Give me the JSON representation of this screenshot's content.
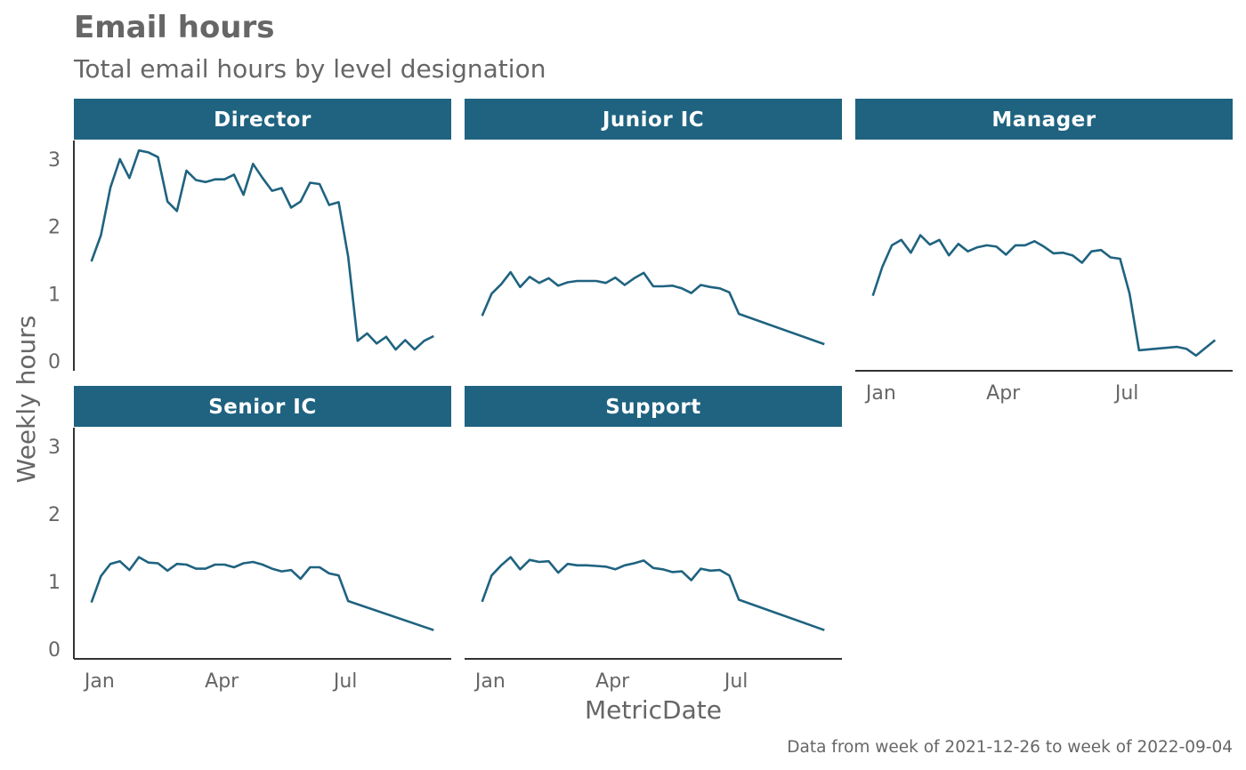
{
  "chart_data": {
    "type": "line",
    "title": "Email hours",
    "subtitle": "Total email hours by level designation",
    "xlabel": "MetricDate",
    "ylabel": "Weekly hours",
    "caption": "Data from week of 2021-12-26 to week of 2022-09-04",
    "x_ticks": [
      "Jan",
      "Apr",
      "Jul"
    ],
    "y_ticks": [
      "0",
      "1",
      "2",
      "3"
    ],
    "ylim": [
      0,
      3.3
    ],
    "line_color": "#1F6380",
    "strip_color": "#1F6380",
    "panels": [
      {
        "name": "Director",
        "x": [
          "2021-12-26",
          "2022-01-02",
          "2022-01-09",
          "2022-01-16",
          "2022-01-23",
          "2022-01-30",
          "2022-02-06",
          "2022-02-13",
          "2022-02-20",
          "2022-02-27",
          "2022-03-06",
          "2022-03-13",
          "2022-03-20",
          "2022-03-27",
          "2022-04-03",
          "2022-04-10",
          "2022-04-17",
          "2022-04-24",
          "2022-05-01",
          "2022-05-08",
          "2022-05-15",
          "2022-05-22",
          "2022-05-29",
          "2022-06-05",
          "2022-06-12",
          "2022-06-19",
          "2022-06-26",
          "2022-07-03",
          "2022-07-10",
          "2022-07-17",
          "2022-07-24",
          "2022-07-31",
          "2022-08-07",
          "2022-08-14",
          "2022-08-21",
          "2022-08-28",
          "2022-09-04"
        ],
        "y": [
          1.48,
          1.87,
          2.58,
          3.0,
          2.72,
          3.13,
          3.1,
          3.03,
          2.37,
          2.23,
          2.83,
          2.69,
          2.66,
          2.7,
          2.7,
          2.77,
          2.47,
          2.93,
          2.72,
          2.53,
          2.57,
          2.28,
          2.37,
          2.65,
          2.63,
          2.32,
          2.36,
          1.55,
          0.3,
          0.41,
          0.26,
          0.36,
          0.17,
          0.31,
          0.17,
          0.3,
          0.37
        ]
      },
      {
        "name": "Junior IC",
        "x": [
          "2021-12-26",
          "2022-01-02",
          "2022-01-09",
          "2022-01-16",
          "2022-01-23",
          "2022-01-30",
          "2022-02-06",
          "2022-02-13",
          "2022-02-20",
          "2022-02-27",
          "2022-03-06",
          "2022-03-13",
          "2022-03-20",
          "2022-03-27",
          "2022-04-03",
          "2022-04-10",
          "2022-04-17",
          "2022-04-24",
          "2022-05-01",
          "2022-05-08",
          "2022-05-15",
          "2022-05-22",
          "2022-05-29",
          "2022-06-05",
          "2022-06-12",
          "2022-06-19",
          "2022-06-26",
          "2022-07-03",
          "2022-09-04"
        ],
        "y": [
          0.67,
          1.0,
          1.14,
          1.32,
          1.1,
          1.25,
          1.16,
          1.23,
          1.12,
          1.17,
          1.19,
          1.19,
          1.19,
          1.16,
          1.24,
          1.13,
          1.23,
          1.31,
          1.11,
          1.11,
          1.12,
          1.08,
          1.01,
          1.13,
          1.1,
          1.08,
          1.02,
          0.7,
          0.25
        ]
      },
      {
        "name": "Manager",
        "x": [
          "2021-12-26",
          "2022-01-02",
          "2022-01-09",
          "2022-01-16",
          "2022-01-23",
          "2022-01-30",
          "2022-02-06",
          "2022-02-13",
          "2022-02-20",
          "2022-02-27",
          "2022-03-06",
          "2022-03-13",
          "2022-03-20",
          "2022-03-27",
          "2022-04-03",
          "2022-04-10",
          "2022-04-17",
          "2022-04-24",
          "2022-05-01",
          "2022-05-08",
          "2022-05-15",
          "2022-05-22",
          "2022-05-29",
          "2022-06-05",
          "2022-06-12",
          "2022-06-19",
          "2022-06-26",
          "2022-07-03",
          "2022-07-10",
          "2022-08-07",
          "2022-08-14",
          "2022-08-21",
          "2022-09-04"
        ],
        "y": [
          0.97,
          1.4,
          1.72,
          1.8,
          1.61,
          1.87,
          1.73,
          1.8,
          1.57,
          1.74,
          1.63,
          1.69,
          1.72,
          1.7,
          1.58,
          1.72,
          1.72,
          1.78,
          1.7,
          1.6,
          1.61,
          1.57,
          1.46,
          1.63,
          1.65,
          1.54,
          1.52,
          1.0,
          0.16,
          0.21,
          0.18,
          0.08,
          0.31
        ]
      },
      {
        "name": "Senior IC",
        "x": [
          "2021-12-26",
          "2022-01-02",
          "2022-01-09",
          "2022-01-16",
          "2022-01-23",
          "2022-01-30",
          "2022-02-06",
          "2022-02-13",
          "2022-02-20",
          "2022-02-27",
          "2022-03-06",
          "2022-03-13",
          "2022-03-20",
          "2022-03-27",
          "2022-04-03",
          "2022-04-10",
          "2022-04-17",
          "2022-04-24",
          "2022-05-01",
          "2022-05-08",
          "2022-05-15",
          "2022-05-22",
          "2022-05-29",
          "2022-06-05",
          "2022-06-12",
          "2022-06-19",
          "2022-06-26",
          "2022-07-03",
          "2022-09-04"
        ],
        "y": [
          0.69,
          1.08,
          1.26,
          1.3,
          1.17,
          1.36,
          1.28,
          1.27,
          1.16,
          1.26,
          1.25,
          1.19,
          1.19,
          1.25,
          1.25,
          1.21,
          1.27,
          1.29,
          1.25,
          1.19,
          1.15,
          1.17,
          1.04,
          1.21,
          1.21,
          1.12,
          1.09,
          0.71,
          0.28
        ]
      },
      {
        "name": "Support",
        "x": [
          "2021-12-26",
          "2022-01-02",
          "2022-01-09",
          "2022-01-16",
          "2022-01-23",
          "2022-01-30",
          "2022-02-06",
          "2022-02-13",
          "2022-02-20",
          "2022-02-27",
          "2022-03-06",
          "2022-03-13",
          "2022-03-20",
          "2022-03-27",
          "2022-04-03",
          "2022-04-10",
          "2022-04-17",
          "2022-04-24",
          "2022-05-01",
          "2022-05-08",
          "2022-05-15",
          "2022-05-22",
          "2022-05-29",
          "2022-06-05",
          "2022-06-12",
          "2022-06-19",
          "2022-06-26",
          "2022-07-03",
          "2022-09-04"
        ],
        "y": [
          0.7,
          1.09,
          1.24,
          1.36,
          1.18,
          1.32,
          1.29,
          1.3,
          1.13,
          1.26,
          1.24,
          1.24,
          1.23,
          1.22,
          1.18,
          1.24,
          1.27,
          1.31,
          1.2,
          1.18,
          1.14,
          1.15,
          1.02,
          1.19,
          1.16,
          1.17,
          1.09,
          0.73,
          0.28
        ]
      }
    ]
  }
}
